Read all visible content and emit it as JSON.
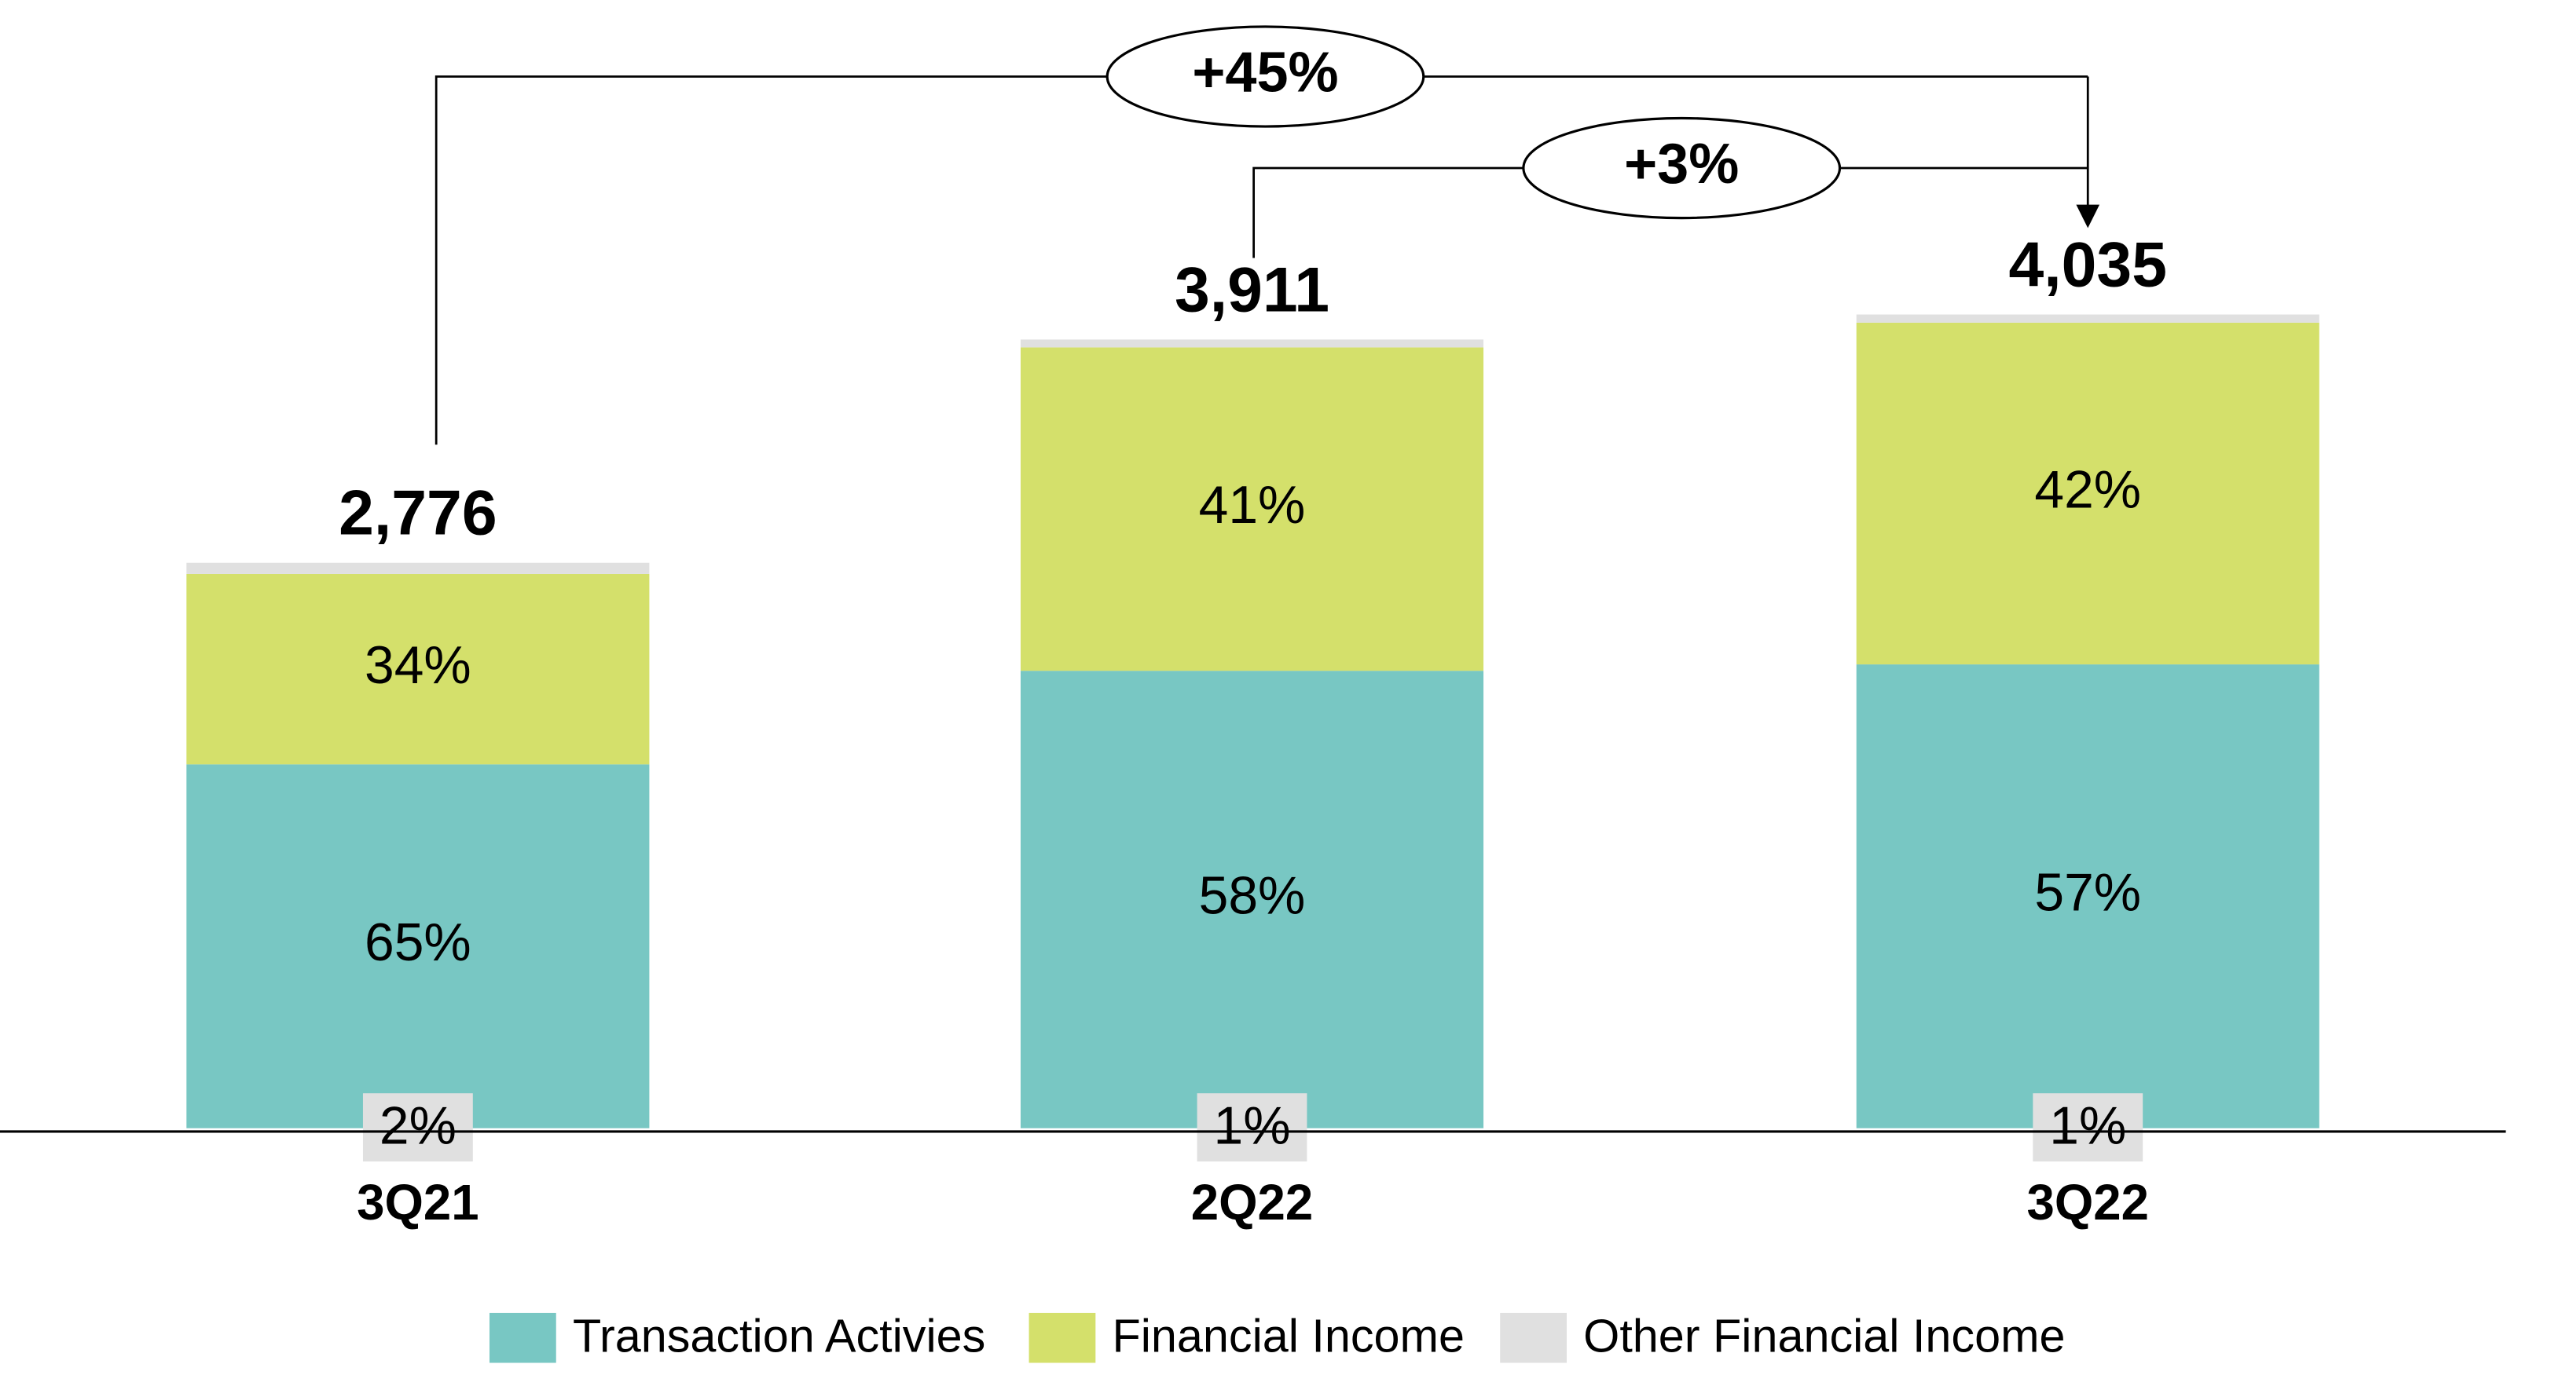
{
  "chart_data": {
    "type": "stacked_bar",
    "categories": [
      "3Q21",
      "2Q22",
      "3Q22"
    ],
    "totals": {
      "values": [
        2776,
        3911,
        4035
      ],
      "value_labels": [
        "2,776",
        "3,911",
        "4,035"
      ]
    },
    "series": [
      {
        "name": "Transaction Activies",
        "color": "#78c7c3",
        "values": [
          65,
          58,
          57
        ],
        "value_labels": [
          "65%",
          "58%",
          "57%"
        ]
      },
      {
        "name": "Financial Income",
        "color": "#d4e06b",
        "values": [
          34,
          41,
          42
        ],
        "value_labels": [
          "34%",
          "41%",
          "42%"
        ]
      },
      {
        "name": "Other Financial Income",
        "color": "#e0e0e0",
        "values": [
          2,
          1,
          1
        ],
        "value_labels": [
          "2%",
          "1%",
          "1%"
        ]
      }
    ],
    "annotations": [
      "+45%",
      "+3%"
    ],
    "legend": "bottom"
  }
}
